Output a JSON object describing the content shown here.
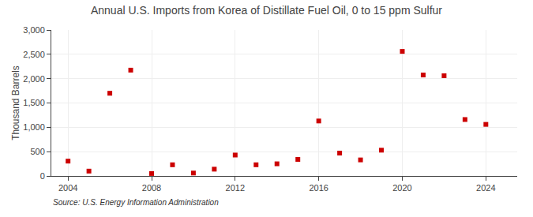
{
  "chart_data": {
    "type": "scatter",
    "title": "Annual U.S. Imports from Korea of Distillate Fuel Oil, 0 to 15 ppm Sulfur",
    "ylabel": "Thousand Barrels",
    "annotations": [
      {
        "text": "Source: U.S. Energy Information Administration"
      }
    ],
    "x": [
      2004,
      2005,
      2006,
      2007,
      2008,
      2009,
      2010,
      2011,
      2012,
      2013,
      2014,
      2015,
      2016,
      2017,
      2018,
      2019,
      2020,
      2021,
      2022,
      2023,
      2024
    ],
    "values": [
      305,
      100,
      1700,
      2175,
      50,
      230,
      60,
      140,
      430,
      230,
      250,
      340,
      1130,
      470,
      330,
      530,
      2560,
      2075,
      2060,
      1160,
      1060
    ],
    "color": "#cc0000",
    "marker": "square",
    "xlim": [
      2003.2,
      2025.5
    ],
    "xticks": [
      2004,
      2008,
      2012,
      2016,
      2020,
      2024
    ],
    "ylim": [
      0,
      3000
    ],
    "yticks": [
      0,
      500,
      {
        "value": 1000,
        "label": "1,000"
      },
      {
        "value": 1500,
        "label": "1,500"
      },
      {
        "value": 2000,
        "label": "2,000"
      },
      {
        "value": 2500,
        "label": "2,500"
      },
      {
        "value": 3000,
        "label": "3,000"
      }
    ],
    "grid": true
  }
}
